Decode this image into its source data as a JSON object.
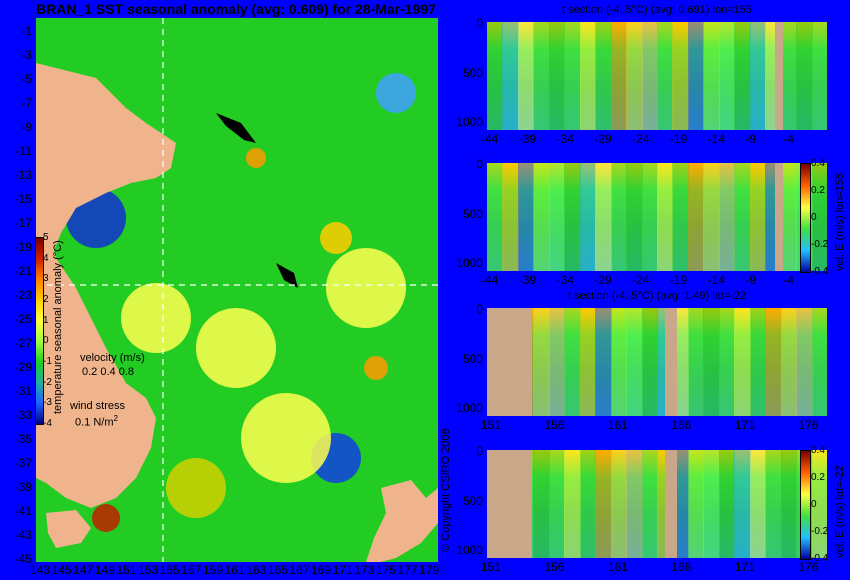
{
  "map": {
    "title": "BRAN_1 SST seasonal anomaly (avg: 0.609) for 28-Mar-1997",
    "y_ticks": [
      "-1",
      "-3",
      "-5",
      "-7",
      "-9",
      "-11",
      "-13",
      "-15",
      "-17",
      "-19",
      "-21",
      "-23",
      "-25",
      "-27",
      "-29",
      "-31",
      "-33",
      "-35",
      "-37",
      "-39",
      "-41",
      "-43",
      "-45"
    ],
    "x_ticks": [
      "143",
      "145",
      "147",
      "149",
      "151",
      "153",
      "155",
      "157",
      "159",
      "161",
      "163",
      "165",
      "167",
      "169",
      "171",
      "173",
      "175",
      "177",
      "179"
    ],
    "colorbar_ticks": [
      "5",
      "4",
      "3",
      "2",
      "1",
      "0",
      "-1",
      "-2",
      "-3",
      "-4"
    ],
    "colorbar_label": "temperature seasonal anomaly (°C)",
    "velocity_label": "velocity (m/s)",
    "velocity_scale": "0.2 0.4 0.8",
    "wind_label": "wind stress",
    "wind_scale": "0.1 N/m",
    "wind_sup": "2",
    "copyright": "© Copyright CSIRO 2006"
  },
  "panels": [
    {
      "title": "t section (-4..5°C) (avg: 0.691) lon=155",
      "x_ticks": [
        "-44",
        "-39",
        "-34",
        "-29",
        "-24",
        "-19",
        "-14",
        "-9",
        "-4"
      ],
      "y_ticks": [
        "0",
        "500",
        "1000"
      ]
    },
    {
      "title": "",
      "x_ticks": [
        "-44",
        "-39",
        "-34",
        "-29",
        "-24",
        "-19",
        "-14",
        "-9",
        "-4"
      ],
      "y_ticks": [
        "0",
        "500",
        "1000"
      ],
      "colorbar_ticks": [
        "0.4",
        "0.2",
        "0",
        "-0.2",
        "-0.4"
      ],
      "colorbar_label": "vel. E (m/s) lon=155"
    },
    {
      "title": "t section (-4..5°C) (avg: 1.49) lat=-22",
      "x_ticks": [
        "151",
        "156",
        "161",
        "166",
        "171",
        "176"
      ],
      "y_ticks": [
        "0",
        "500",
        "1000"
      ]
    },
    {
      "title": "",
      "x_ticks": [
        "151",
        "156",
        "161",
        "166",
        "171",
        "176"
      ],
      "y_ticks": [
        "0",
        "500",
        "1000"
      ],
      "colorbar_ticks": [
        "0.4",
        "0.2",
        "0",
        "-0.2",
        "-0.4"
      ],
      "colorbar_label": "vel. E (m/s) lat=-22"
    }
  ],
  "chart_data": [
    {
      "type": "heatmap",
      "title": "BRAN_1 SST seasonal anomaly (avg: 0.609) for 28-Mar-1997",
      "x_range": [
        143,
        180
      ],
      "y_range": [
        -45,
        0
      ],
      "color_range": [
        -4,
        5
      ],
      "colorbar_label": "temperature seasonal anomaly (°C)",
      "crosshair": {
        "lon": 155,
        "lat": -22
      },
      "grid": false
    },
    {
      "type": "heatmap",
      "title": "t section (-4..5°C) (avg: 0.691) lon=155",
      "x_range": [
        -45,
        0
      ],
      "y_range": [
        1000,
        0
      ],
      "color_range": [
        -4,
        5
      ]
    },
    {
      "type": "heatmap",
      "title": "",
      "x_range": [
        -45,
        0
      ],
      "y_range": [
        1000,
        0
      ],
      "color_range": [
        -0.4,
        0.4
      ],
      "colorbar_label": "vel. E (m/s) lon=155"
    },
    {
      "type": "heatmap",
      "title": "t section (-4..5°C) (avg: 1.49) lat=-22",
      "x_range": [
        150,
        180
      ],
      "y_range": [
        1000,
        0
      ],
      "color_range": [
        -4,
        5
      ]
    },
    {
      "type": "heatmap",
      "title": "",
      "x_range": [
        150,
        180
      ],
      "y_range": [
        1000,
        0
      ],
      "color_range": [
        -0.4,
        0.4
      ],
      "colorbar_label": "vel. E (m/s) lat=-22"
    }
  ]
}
